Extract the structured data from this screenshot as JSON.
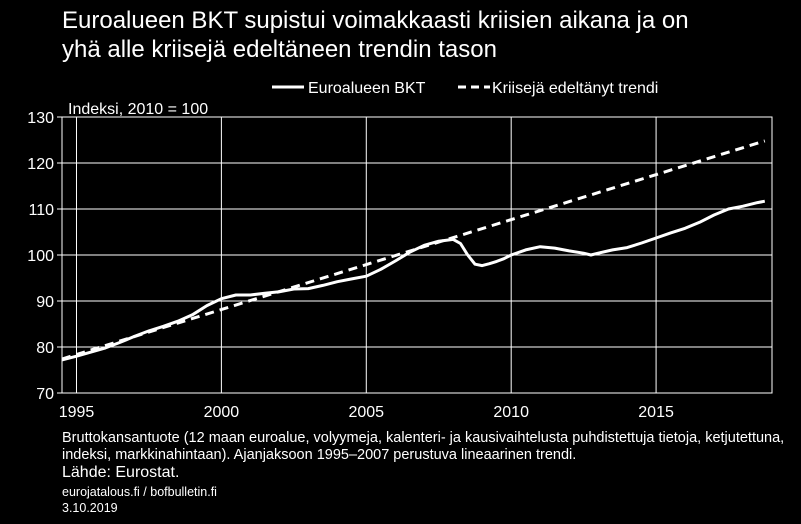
{
  "title": {
    "line1": "Euroalueen BKT supistui voimakkaasti kriisien aikana ja on",
    "line2": "yhä alle kriisejä edeltäneen trendin tason"
  },
  "chart_data": {
    "type": "line",
    "ylabel": "Indeksi, 2010 = 100",
    "xlim": [
      1994.5,
      2019.0
    ],
    "ylim": [
      70,
      130
    ],
    "yticks": [
      70,
      80,
      90,
      100,
      110,
      120,
      130
    ],
    "xticks": [
      1995,
      2000,
      2005,
      2010,
      2015
    ],
    "grid": true,
    "legend_position": "top-right",
    "series": [
      {
        "name": "Euroalueen BKT",
        "style": "solid",
        "color": "#ffffff",
        "x": [
          1994.5,
          1995.0,
          1995.5,
          1996.0,
          1996.5,
          1997.0,
          1997.5,
          1998.0,
          1998.5,
          1999.0,
          1999.5,
          2000.0,
          2000.5,
          2001.0,
          2001.5,
          2002.0,
          2002.5,
          2003.0,
          2003.5,
          2004.0,
          2004.5,
          2005.0,
          2005.5,
          2006.0,
          2006.5,
          2007.0,
          2007.5,
          2008.0,
          2008.25,
          2008.5,
          2008.75,
          2009.0,
          2009.25,
          2009.5,
          2009.75,
          2010.0,
          2010.5,
          2011.0,
          2011.5,
          2012.0,
          2012.5,
          2012.75,
          2013.0,
          2013.5,
          2014.0,
          2014.5,
          2015.0,
          2015.5,
          2016.0,
          2016.5,
          2017.0,
          2017.5,
          2018.0,
          2018.5,
          2018.75
        ],
        "values": [
          77.2,
          78.0,
          78.9,
          79.8,
          81.0,
          82.3,
          83.5,
          84.5,
          85.6,
          87.0,
          89.0,
          90.5,
          91.3,
          91.3,
          91.7,
          92.0,
          92.6,
          92.7,
          93.4,
          94.2,
          94.8,
          95.4,
          96.9,
          98.7,
          100.6,
          102.1,
          103.0,
          103.4,
          102.5,
          100.0,
          98.0,
          97.7,
          98.1,
          98.6,
          99.2,
          100.0,
          101.1,
          101.8,
          101.5,
          100.9,
          100.4,
          100.0,
          100.4,
          101.1,
          101.6,
          102.6,
          103.7,
          104.8,
          105.8,
          107.1,
          108.7,
          110.0,
          110.6,
          111.4,
          111.7
        ]
      },
      {
        "name": "Kriisejä edeltänyt trendi",
        "style": "dashed",
        "color": "#ffffff",
        "x": [
          1994.5,
          2018.75
        ],
        "values": [
          77.4,
          124.8
        ]
      }
    ]
  },
  "caption": "Bruttokansantuote (12 maan euroalue, volyymeja, kalenteri- ja kausivaihtelusta puhdistettuja tietoja, ketjutettuna, indeksi, markkinahintaan). Ajanjaksoon 1995–2007 perustuva lineaarinen trendi.",
  "source": "Lähde: Eurostat.",
  "footer": {
    "site": "eurojatalous.fi / bofbulletin.fi",
    "date": "3.10.2019"
  }
}
